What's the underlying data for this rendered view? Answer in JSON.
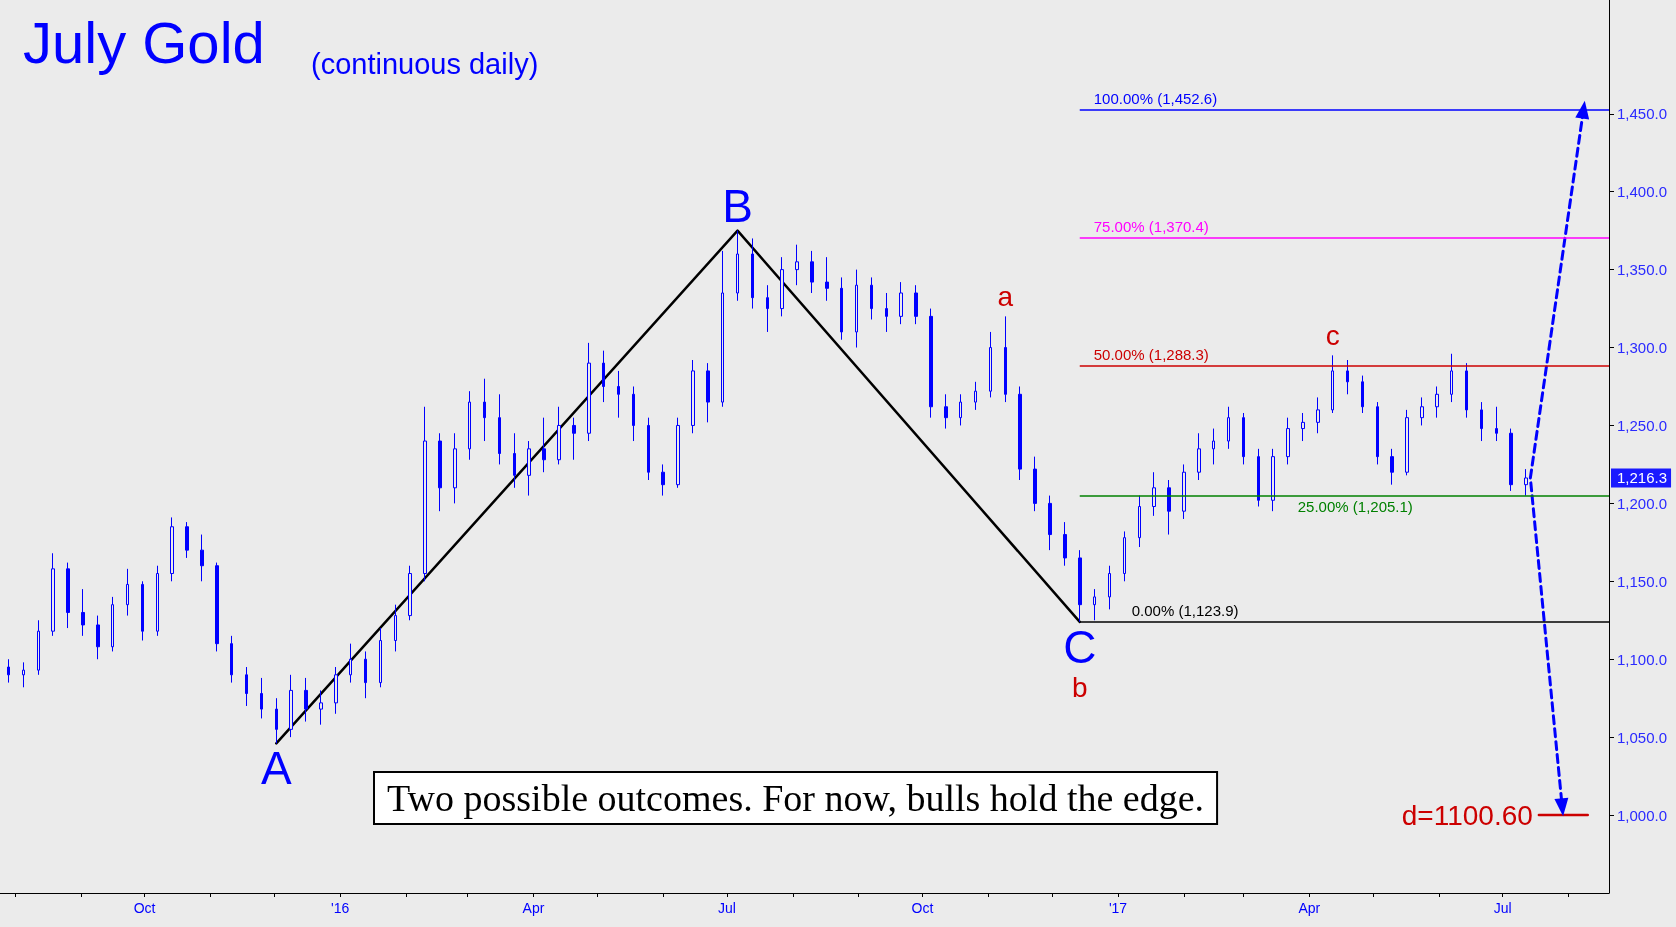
{
  "chart_data": {
    "type": "candlestick",
    "title": "July Gold",
    "subtitle": "(continuous daily)",
    "color": "#0000ff",
    "x": [
      "2015-07-29",
      "2015-08-05",
      "2015-08-12",
      "2015-08-19",
      "2015-08-26",
      "2015-09-02",
      "2015-09-09",
      "2015-09-16",
      "2015-09-23",
      "2015-09-30",
      "2015-10-07",
      "2015-10-14",
      "2015-10-21",
      "2015-10-28",
      "2015-11-04",
      "2015-11-11",
      "2015-11-18",
      "2015-11-25",
      "2015-12-02",
      "2015-12-09",
      "2015-12-16",
      "2015-12-23",
      "2015-12-30",
      "2016-01-06",
      "2016-01-13",
      "2016-01-20",
      "2016-01-27",
      "2016-02-03",
      "2016-02-10",
      "2016-02-17",
      "2016-02-24",
      "2016-03-02",
      "2016-03-09",
      "2016-03-16",
      "2016-03-23",
      "2016-03-30",
      "2016-04-06",
      "2016-04-13",
      "2016-04-20",
      "2016-04-27",
      "2016-05-04",
      "2016-05-11",
      "2016-05-18",
      "2016-05-25",
      "2016-06-01",
      "2016-06-08",
      "2016-06-15",
      "2016-06-22",
      "2016-06-29",
      "2016-07-06",
      "2016-07-13",
      "2016-07-20",
      "2016-07-27",
      "2016-08-03",
      "2016-08-10",
      "2016-08-17",
      "2016-08-24",
      "2016-08-31",
      "2016-09-07",
      "2016-09-14",
      "2016-09-21",
      "2016-09-28",
      "2016-10-05",
      "2016-10-12",
      "2016-10-19",
      "2016-10-26",
      "2016-11-02",
      "2016-11-09",
      "2016-11-16",
      "2016-11-23",
      "2016-11-30",
      "2016-12-07",
      "2016-12-14",
      "2016-12-21",
      "2016-12-28",
      "2017-01-04",
      "2017-01-11",
      "2017-01-18",
      "2017-01-25",
      "2017-02-01",
      "2017-02-08",
      "2017-02-15",
      "2017-02-22",
      "2017-03-01",
      "2017-03-08",
      "2017-03-15",
      "2017-03-22",
      "2017-03-29",
      "2017-04-05",
      "2017-04-12",
      "2017-04-19",
      "2017-04-26",
      "2017-05-03",
      "2017-05-10",
      "2017-05-17",
      "2017-05-24",
      "2017-05-31",
      "2017-06-07",
      "2017-06-14",
      "2017-06-21",
      "2017-06-28",
      "2017-07-05",
      "2017-07-12"
    ],
    "ohlc": [
      [
        1095,
        1100,
        1085,
        1090
      ],
      [
        1090,
        1098,
        1082,
        1093
      ],
      [
        1093,
        1125,
        1090,
        1118
      ],
      [
        1118,
        1168,
        1115,
        1158
      ],
      [
        1158,
        1162,
        1120,
        1130
      ],
      [
        1130,
        1145,
        1115,
        1122
      ],
      [
        1122,
        1128,
        1100,
        1108
      ],
      [
        1108,
        1140,
        1105,
        1135
      ],
      [
        1135,
        1158,
        1128,
        1148
      ],
      [
        1148,
        1150,
        1112,
        1118
      ],
      [
        1118,
        1160,
        1115,
        1155
      ],
      [
        1155,
        1191,
        1150,
        1185
      ],
      [
        1185,
        1188,
        1165,
        1170
      ],
      [
        1170,
        1180,
        1150,
        1160
      ],
      [
        1160,
        1162,
        1105,
        1110
      ],
      [
        1110,
        1115,
        1085,
        1090
      ],
      [
        1090,
        1095,
        1070,
        1078
      ],
      [
        1078,
        1088,
        1062,
        1068
      ],
      [
        1068,
        1075,
        1046,
        1055
      ],
      [
        1055,
        1090,
        1050,
        1080
      ],
      [
        1080,
        1088,
        1060,
        1068
      ],
      [
        1068,
        1080,
        1058,
        1072
      ],
      [
        1072,
        1095,
        1065,
        1090
      ],
      [
        1090,
        1110,
        1085,
        1100
      ],
      [
        1100,
        1105,
        1075,
        1085
      ],
      [
        1085,
        1120,
        1082,
        1112
      ],
      [
        1112,
        1135,
        1105,
        1128
      ],
      [
        1128,
        1160,
        1125,
        1155
      ],
      [
        1155,
        1262,
        1150,
        1240
      ],
      [
        1240,
        1245,
        1195,
        1210
      ],
      [
        1210,
        1245,
        1200,
        1235
      ],
      [
        1235,
        1272,
        1228,
        1265
      ],
      [
        1265,
        1280,
        1240,
        1255
      ],
      [
        1255,
        1270,
        1225,
        1232
      ],
      [
        1232,
        1245,
        1210,
        1218
      ],
      [
        1218,
        1240,
        1205,
        1235
      ],
      [
        1235,
        1255,
        1220,
        1228
      ],
      [
        1228,
        1262,
        1225,
        1250
      ],
      [
        1250,
        1255,
        1228,
        1245
      ],
      [
        1245,
        1303,
        1240,
        1290
      ],
      [
        1290,
        1298,
        1265,
        1275
      ],
      [
        1275,
        1285,
        1255,
        1270
      ],
      [
        1270,
        1275,
        1240,
        1250
      ],
      [
        1250,
        1255,
        1215,
        1220
      ],
      [
        1220,
        1225,
        1205,
        1212
      ],
      [
        1212,
        1255,
        1210,
        1250
      ],
      [
        1250,
        1292,
        1245,
        1285
      ],
      [
        1285,
        1290,
        1252,
        1265
      ],
      [
        1265,
        1362,
        1262,
        1335
      ],
      [
        1335,
        1375,
        1330,
        1360
      ],
      [
        1360,
        1370,
        1325,
        1332
      ],
      [
        1332,
        1340,
        1310,
        1325
      ],
      [
        1325,
        1358,
        1320,
        1350
      ],
      [
        1350,
        1366,
        1340,
        1355
      ],
      [
        1355,
        1362,
        1335,
        1342
      ],
      [
        1342,
        1358,
        1330,
        1338
      ],
      [
        1338,
        1345,
        1305,
        1310
      ],
      [
        1310,
        1350,
        1300,
        1340
      ],
      [
        1340,
        1345,
        1318,
        1325
      ],
      [
        1325,
        1335,
        1310,
        1320
      ],
      [
        1320,
        1342,
        1315,
        1335
      ],
      [
        1335,
        1340,
        1315,
        1320
      ],
      [
        1320,
        1325,
        1255,
        1262
      ],
      [
        1262,
        1270,
        1248,
        1255
      ],
      [
        1255,
        1270,
        1250,
        1265
      ],
      [
        1265,
        1278,
        1260,
        1272
      ],
      [
        1272,
        1310,
        1268,
        1300
      ],
      [
        1300,
        1320,
        1265,
        1270
      ],
      [
        1270,
        1275,
        1215,
        1222
      ],
      [
        1222,
        1230,
        1195,
        1200
      ],
      [
        1200,
        1205,
        1170,
        1180
      ],
      [
        1180,
        1188,
        1160,
        1165
      ],
      [
        1165,
        1170,
        1124,
        1135
      ],
      [
        1135,
        1145,
        1125,
        1140
      ],
      [
        1140,
        1160,
        1132,
        1155
      ],
      [
        1155,
        1182,
        1150,
        1178
      ],
      [
        1178,
        1205,
        1172,
        1198
      ],
      [
        1198,
        1220,
        1192,
        1210
      ],
      [
        1210,
        1215,
        1180,
        1195
      ],
      [
        1195,
        1225,
        1190,
        1220
      ],
      [
        1220,
        1245,
        1215,
        1235
      ],
      [
        1235,
        1248,
        1225,
        1240
      ],
      [
        1240,
        1262,
        1235,
        1255
      ],
      [
        1255,
        1258,
        1225,
        1230
      ],
      [
        1230,
        1235,
        1198,
        1202
      ],
      [
        1202,
        1235,
        1195,
        1230
      ],
      [
        1230,
        1255,
        1225,
        1248
      ],
      [
        1248,
        1258,
        1240,
        1252
      ],
      [
        1252,
        1268,
        1245,
        1260
      ],
      [
        1260,
        1295,
        1258,
        1285
      ],
      [
        1285,
        1292,
        1270,
        1278
      ],
      [
        1278,
        1282,
        1258,
        1262
      ],
      [
        1262,
        1265,
        1225,
        1230
      ],
      [
        1230,
        1235,
        1212,
        1220
      ],
      [
        1220,
        1260,
        1218,
        1255
      ],
      [
        1255,
        1268,
        1250,
        1262
      ],
      [
        1262,
        1275,
        1255,
        1270
      ],
      [
        1270,
        1296,
        1265,
        1285
      ],
      [
        1285,
        1290,
        1255,
        1260
      ],
      [
        1260,
        1265,
        1240,
        1248
      ],
      [
        1248,
        1262,
        1240,
        1245
      ],
      [
        1245,
        1248,
        1208,
        1212
      ],
      [
        1212,
        1222,
        1205,
        1216.3
      ]
    ],
    "series": [
      {
        "type": "line",
        "color": "#000000",
        "line_style": "solid",
        "x": [
          "2015-12-02",
          "2016-07-06",
          "2016-12-14"
        ],
        "values": [
          1046,
          1375,
          1124
        ]
      },
      {
        "type": "line",
        "color": "#0000ff",
        "line_style": "dashed",
        "x": [
          "2017-08-08",
          "2017-07-14",
          "2017-07-29"
        ],
        "values": [
          1452.6,
          1216.3,
          1005
        ]
      },
      {
        "type": "line",
        "color": "#cc0000",
        "line_style": "solid",
        "x": [
          "2017-07-18",
          "2017-08-10"
        ],
        "values": [
          1000,
          1000
        ]
      }
    ],
    "ref_lines": [
      {
        "axis": "y",
        "value": 1452.6,
        "label": "100.00% (1,452.6)",
        "color": "#0000ff"
      },
      {
        "axis": "y",
        "value": 1370.4,
        "label": "75.00% (1,370.4)",
        "color": "#ff00ff"
      },
      {
        "axis": "y",
        "value": 1288.3,
        "label": "50.00% (1,288.3)",
        "color": "#cc0000"
      },
      {
        "axis": "y",
        "value": 1205.1,
        "label": "25.00% (1,205.1)",
        "color": "#008000"
      },
      {
        "axis": "y",
        "value": 1123.9,
        "label": "0.00% (1,123.9)",
        "color": "#000000"
      }
    ],
    "annotations": [
      {
        "text": "A",
        "x": "2015-12-02",
        "y": 1046
      },
      {
        "text": "B",
        "x": "2016-07-06",
        "y": 1375
      },
      {
        "text": "C",
        "x": "2016-12-14",
        "y": 1124
      },
      {
        "text": "a",
        "x": "2016-11-09",
        "y": 1320
      },
      {
        "text": "b",
        "x": "2016-12-14",
        "y": 1124
      },
      {
        "text": "c",
        "x": "2017-04-12",
        "y": 1295
      },
      {
        "text": "d=1100.60",
        "x": "2017-07-18",
        "y": 1000
      },
      "1,216.3",
      "Two possible outcomes. For now, bulls hold the edge."
    ],
    "xlim": [
      "2015-07-25",
      "2017-08-20"
    ],
    "ylim": [
      950,
      1523
    ],
    "xticks": [
      {
        "value": "2015-08-01",
        "label": null
      },
      {
        "value": "2015-09-01",
        "label": null
      },
      {
        "value": "2015-10-01",
        "label": "Oct"
      },
      {
        "value": "2015-11-01",
        "label": null
      },
      {
        "value": "2015-12-01",
        "label": null
      },
      {
        "value": "2016-01-01",
        "label": "'16"
      },
      {
        "value": "2016-02-01",
        "label": null
      },
      {
        "value": "2016-03-01",
        "label": null
      },
      {
        "value": "2016-04-01",
        "label": "Apr"
      },
      {
        "value": "2016-05-01",
        "label": null
      },
      {
        "value": "2016-06-01",
        "label": null
      },
      {
        "value": "2016-07-01",
        "label": "Jul"
      },
      {
        "value": "2016-08-01",
        "label": null
      },
      {
        "value": "2016-09-01",
        "label": null
      },
      {
        "value": "2016-10-01",
        "label": "Oct"
      },
      {
        "value": "2016-11-01",
        "label": null
      },
      {
        "value": "2016-12-01",
        "label": null
      },
      {
        "value": "2017-01-01",
        "label": "'17"
      },
      {
        "value": "2017-02-01",
        "label": null
      },
      {
        "value": "2017-03-01",
        "label": null
      },
      {
        "value": "2017-04-01",
        "label": "Apr"
      },
      {
        "value": "2017-05-01",
        "label": null
      },
      {
        "value": "2017-06-01",
        "label": null
      },
      {
        "value": "2017-07-01",
        "label": "Jul"
      },
      {
        "value": "2017-08-01",
        "label": null
      }
    ],
    "yticks": [
      {
        "value": 1000,
        "label": "1,000.0"
      },
      {
        "value": 1050,
        "label": "1,050.0"
      },
      {
        "value": 1100,
        "label": "1,100.0"
      },
      {
        "value": 1150,
        "label": "1,150.0"
      },
      {
        "value": 1200,
        "label": "1,200.0"
      },
      {
        "value": 1250,
        "label": "1,250.0"
      },
      {
        "value": 1300,
        "label": "1,300.0"
      },
      {
        "value": 1350,
        "label": "1,350.0"
      },
      {
        "value": 1400,
        "label": "1,400.0"
      },
      {
        "value": 1450,
        "label": "1,450.0"
      }
    ],
    "grid": false
  }
}
